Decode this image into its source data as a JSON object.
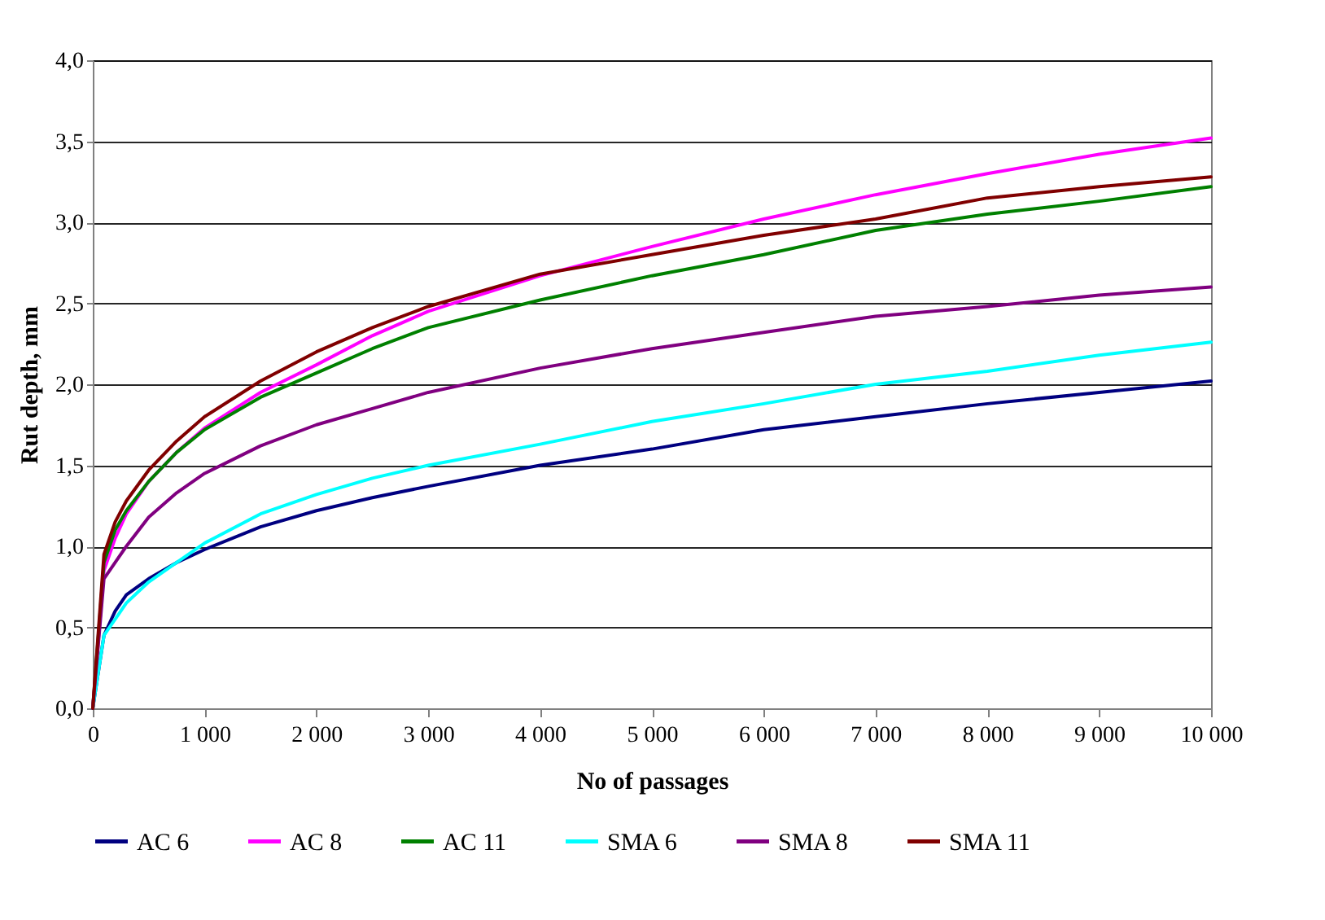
{
  "chart_data": {
    "type": "line",
    "xlabel": "No of passages",
    "ylabel": "Rut depth, mm",
    "x": [
      0,
      100,
      200,
      300,
      500,
      750,
      1000,
      1500,
      2000,
      2500,
      3000,
      4000,
      5000,
      6000,
      7000,
      8000,
      9000,
      10000
    ],
    "series": [
      {
        "name": "AC 6",
        "color": "#000080",
        "values": [
          0,
          0.45,
          0.6,
          0.7,
          0.8,
          0.9,
          0.98,
          1.12,
          1.22,
          1.3,
          1.37,
          1.5,
          1.6,
          1.72,
          1.8,
          1.88,
          1.95,
          2.02
        ]
      },
      {
        "name": "AC 8",
        "color": "#ff00ff",
        "values": [
          0,
          0.85,
          1.05,
          1.2,
          1.4,
          1.58,
          1.73,
          1.95,
          2.12,
          2.3,
          2.45,
          2.67,
          2.85,
          3.02,
          3.17,
          3.3,
          3.42,
          3.52
        ]
      },
      {
        "name": "AC 11",
        "color": "#008000",
        "values": [
          0,
          0.9,
          1.1,
          1.22,
          1.4,
          1.58,
          1.72,
          1.92,
          2.07,
          2.22,
          2.35,
          2.52,
          2.67,
          2.8,
          2.95,
          3.05,
          3.13,
          3.22
        ]
      },
      {
        "name": "SMA 6",
        "color": "#00ffff",
        "values": [
          0,
          0.45,
          0.55,
          0.65,
          0.78,
          0.9,
          1.02,
          1.2,
          1.32,
          1.42,
          1.5,
          1.63,
          1.77,
          1.88,
          2.0,
          2.08,
          2.18,
          2.26
        ]
      },
      {
        "name": "SMA 8",
        "color": "#800080",
        "values": [
          0,
          0.8,
          0.9,
          1.0,
          1.18,
          1.33,
          1.45,
          1.62,
          1.75,
          1.85,
          1.95,
          2.1,
          2.22,
          2.32,
          2.42,
          2.48,
          2.55,
          2.6
        ]
      },
      {
        "name": "SMA 11",
        "color": "#800000",
        "values": [
          0,
          0.95,
          1.15,
          1.28,
          1.47,
          1.65,
          1.8,
          2.02,
          2.2,
          2.35,
          2.48,
          2.68,
          2.8,
          2.92,
          3.02,
          3.15,
          3.22,
          3.28
        ]
      }
    ],
    "xlim": [
      0,
      10000
    ],
    "xticks": [
      0,
      {
        "value": 1000,
        "label": "1 000"
      },
      {
        "value": 2000,
        "label": "2 000"
      },
      {
        "value": 3000,
        "label": "3 000"
      },
      {
        "value": 4000,
        "label": "4 000"
      },
      {
        "value": 5000,
        "label": "5 000"
      },
      {
        "value": 6000,
        "label": "6 000"
      },
      {
        "value": 7000,
        "label": "7 000"
      },
      {
        "value": 8000,
        "label": "8 000"
      },
      {
        "value": 9000,
        "label": "9 000"
      },
      {
        "value": 10000,
        "label": "10 000"
      }
    ],
    "ylim": [
      0,
      4
    ],
    "yticks": [
      {
        "value": 0,
        "label": "0,0"
      },
      {
        "value": 0.5,
        "label": "0,5"
      },
      {
        "value": 1,
        "label": "1,0"
      },
      {
        "value": 1.5,
        "label": "1,5"
      },
      {
        "value": 2,
        "label": "2,0"
      },
      {
        "value": 2.5,
        "label": "2,5"
      },
      {
        "value": 3,
        "label": "3,0"
      },
      {
        "value": 3.5,
        "label": "3,5"
      },
      {
        "value": 4,
        "label": "4,0"
      }
    ],
    "grid": "y",
    "legend": "bottom",
    "marker": "none",
    "line_style": "solid"
  }
}
